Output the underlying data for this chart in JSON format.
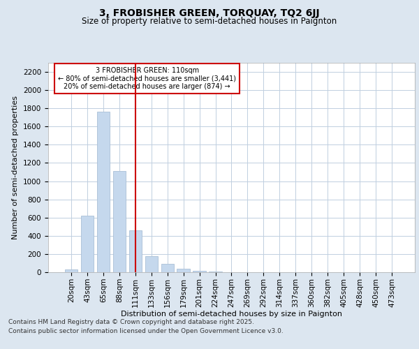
{
  "title_line1": "3, FROBISHER GREEN, TORQUAY, TQ2 6JJ",
  "title_line2": "Size of property relative to semi-detached houses in Paignton",
  "xlabel": "Distribution of semi-detached houses by size in Paignton",
  "ylabel": "Number of semi-detached properties",
  "categories": [
    "20sqm",
    "43sqm",
    "65sqm",
    "88sqm",
    "111sqm",
    "133sqm",
    "156sqm",
    "179sqm",
    "201sqm",
    "224sqm",
    "247sqm",
    "269sqm",
    "292sqm",
    "314sqm",
    "337sqm",
    "360sqm",
    "382sqm",
    "405sqm",
    "428sqm",
    "450sqm",
    "473sqm"
  ],
  "values": [
    30,
    620,
    1760,
    1110,
    460,
    175,
    90,
    40,
    15,
    10,
    0,
    0,
    0,
    0,
    0,
    0,
    0,
    0,
    0,
    0,
    0
  ],
  "bar_color": "#c5d8ed",
  "bar_edge_color": "#aabfd6",
  "vline_x_index": 4,
  "vline_color": "#cc0000",
  "annotation_line1": "3 FROBISHER GREEN: 110sqm",
  "annotation_line2": "← 80% of semi-detached houses are smaller (3,441)",
  "annotation_line3": "20% of semi-detached houses are larger (874) →",
  "annotation_box_color": "#cc0000",
  "ylim": [
    0,
    2300
  ],
  "yticks": [
    0,
    200,
    400,
    600,
    800,
    1000,
    1200,
    1400,
    1600,
    1800,
    2000,
    2200
  ],
  "background_color": "#dce6f0",
  "plot_bg_color": "#ffffff",
  "grid_color": "#c0cfe0",
  "footer_line1": "Contains HM Land Registry data © Crown copyright and database right 2025.",
  "footer_line2": "Contains public sector information licensed under the Open Government Licence v3.0.",
  "title_fontsize": 10,
  "subtitle_fontsize": 8.5,
  "axis_label_fontsize": 8,
  "tick_fontsize": 7.5,
  "footer_fontsize": 6.5
}
